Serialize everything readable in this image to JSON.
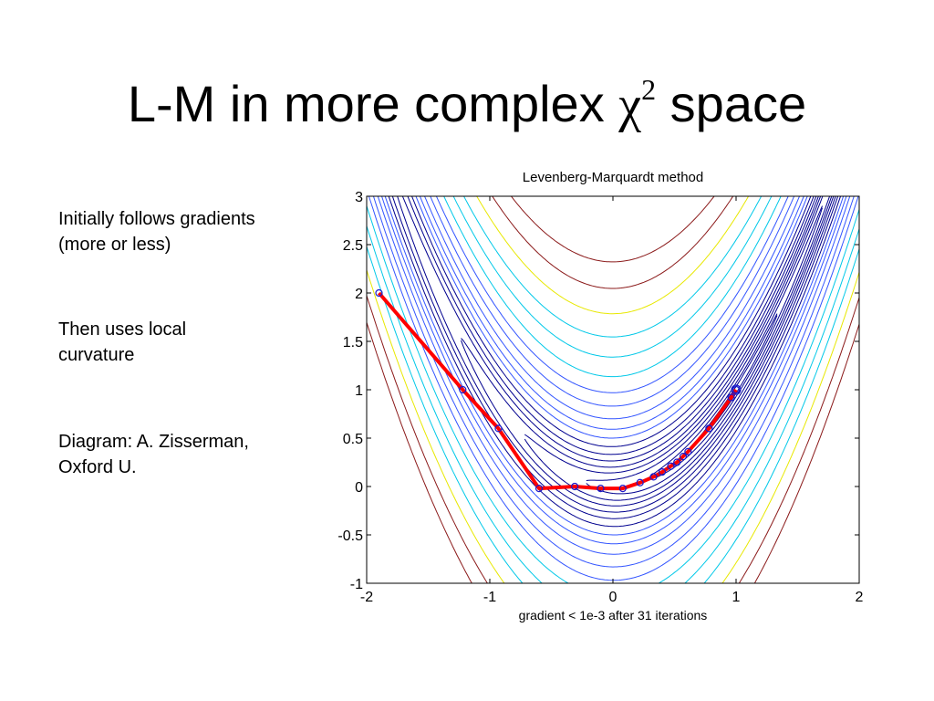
{
  "slide": {
    "title_prefix": "L-M in more complex",
    "title_symbol": "χ",
    "title_superscript": "2",
    "title_suffix": "space",
    "notes": [
      {
        "lines": [
          "Initially follows gradients",
          "(more or less)"
        ]
      },
      {
        "lines": [
          "Then uses local",
          "curvature"
        ]
      },
      {
        "lines": [
          "Diagram: A. Zisserman,",
          "Oxford U."
        ]
      }
    ]
  },
  "chart_data": {
    "type": "contour",
    "title": "Levenberg-Marquardt method",
    "xlabel": "gradient < 1e-3 after 31 iterations",
    "ylabel": "",
    "xlim": [
      -2,
      2
    ],
    "ylim": [
      -1,
      3
    ],
    "xticks": [
      -2,
      -1,
      0,
      1,
      2
    ],
    "yticks": [
      -1,
      -0.5,
      0,
      0.5,
      1,
      1.5,
      2,
      2.5,
      3
    ],
    "grid": false,
    "colors": {
      "contour_dark": "#00008f",
      "contour_mid": "#3355ff",
      "contour_light": "#00c8e8",
      "contour_yellow": "#e8e800",
      "contour_red": "#8b1a1a",
      "path": "#ff0000",
      "marker": "#1a1acc"
    },
    "path": {
      "x": [
        -1.9,
        -1.22,
        -0.93,
        -0.6,
        -0.31,
        -0.1,
        0.08,
        0.22,
        0.33,
        0.4,
        0.47,
        0.52,
        0.57,
        0.61,
        0.78,
        0.96,
        1.0
      ],
      "y": [
        2.0,
        1.0,
        0.6,
        -0.02,
        0.0,
        -0.02,
        -0.02,
        0.04,
        0.1,
        0.15,
        0.21,
        0.25,
        0.31,
        0.36,
        0.6,
        0.92,
        1.0
      ]
    }
  }
}
